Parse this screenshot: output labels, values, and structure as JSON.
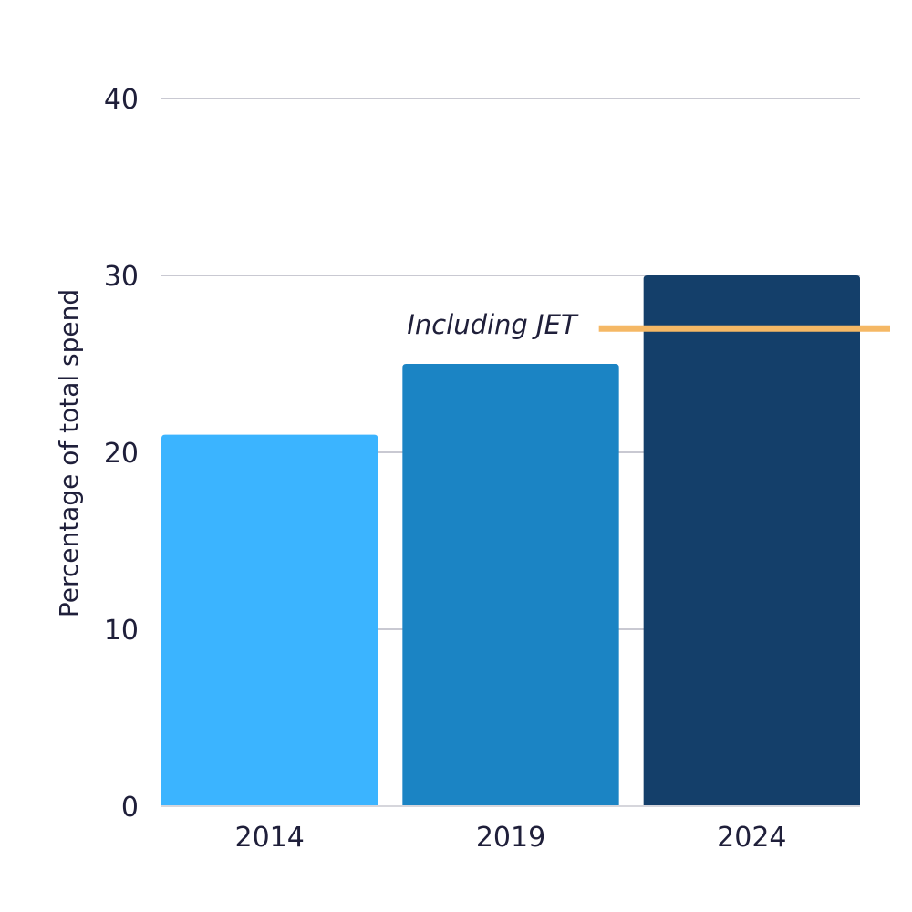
{
  "chart_data": {
    "type": "bar",
    "title": "",
    "xlabel": "",
    "ylabel": "Percentage of total spend",
    "ylim": [
      0,
      40
    ],
    "yticks": [
      0,
      10,
      20,
      30,
      40
    ],
    "grid": true,
    "legend": "none",
    "categories": [
      "2014",
      "2019",
      "2024"
    ],
    "values": [
      21,
      25,
      30
    ],
    "bar_colors": [
      "#3BB4FF",
      "#1B84C4",
      "#143F6A"
    ],
    "annotations": [
      {
        "text": "Including JET",
        "category": "2024",
        "value": 27,
        "color": "#F5B865"
      }
    ]
  }
}
